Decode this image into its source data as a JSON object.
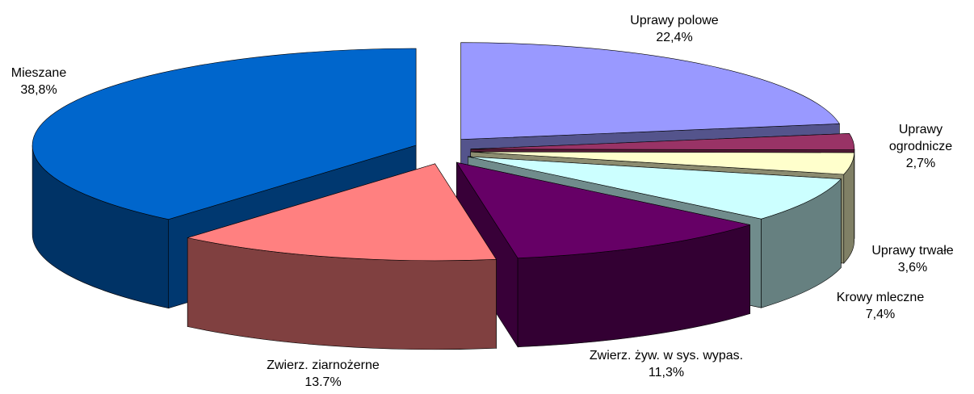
{
  "chart_data": {
    "type": "pie3d",
    "categories": [
      "Uprawy polowe",
      "Uprawy ogrodnicze",
      "Uprawy trwałe",
      "Krowy mleczne",
      "Zwierz. żyw. w sys. wypas.",
      "Zwierz. ziarnożerne",
      "Mieszane"
    ],
    "values": [
      22.4,
      2.7,
      3.6,
      7.4,
      11.3,
      13.7,
      38.8
    ],
    "value_labels": [
      "22,4%",
      "2,7%",
      "3,6%",
      "7,4%",
      "11,3%",
      "13.7%",
      "38,8%"
    ],
    "colors": [
      "#9999ff",
      "#993366",
      "#ffffcc",
      "#ccffff",
      "#660066",
      "#ff8080",
      "#0066cc"
    ]
  }
}
